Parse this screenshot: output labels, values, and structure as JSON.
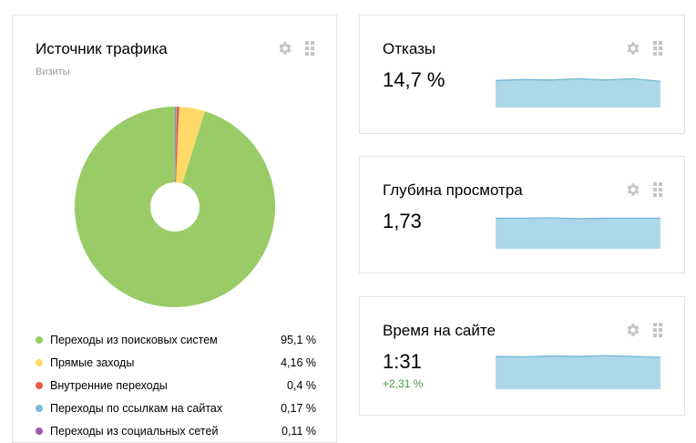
{
  "traffic": {
    "title": "Источник трафика",
    "subtitle": "Визиты"
  },
  "colors": {
    "search": "#99cc66",
    "direct": "#ffd966",
    "internal": "#ea5a4a",
    "links": "#7fb8e0",
    "social": "#9b59b6",
    "spark_fill": "#add8e9",
    "spark_line": "#6fb4d2",
    "positive": "#3c9f37"
  },
  "icons": {
    "settings": "gear-icon",
    "drag": "drag-handle-icon"
  },
  "chart_data": {
    "type": "pie",
    "donut": true,
    "series_label": "Визиты",
    "slices": [
      {
        "label": "Переходы из поисковых систем",
        "display": "95,1 %",
        "value": 95.1,
        "color": "#99cc66"
      },
      {
        "label": "Прямые заходы",
        "display": "4,16 %",
        "value": 4.16,
        "color": "#ffd966"
      },
      {
        "label": "Внутренние переходы",
        "display": "0,4 %",
        "value": 0.4,
        "color": "#ea5a4a"
      },
      {
        "label": "Переходы по ссылкам на сайтах",
        "display": "0,17 %",
        "value": 0.17,
        "color": "#7fb8e0"
      },
      {
        "label": "Переходы из социальных сетей",
        "display": "0,11 %",
        "value": 0.11,
        "color": "#9b59b6"
      }
    ]
  },
  "metrics": {
    "bounce": {
      "title": "Отказы",
      "value": "14,7 %",
      "trend": [
        0.62,
        0.64,
        0.63,
        0.66,
        0.63,
        0.66,
        0.6
      ]
    },
    "depth": {
      "title": "Глубина просмотра",
      "value": "1,73",
      "trend": [
        0.7,
        0.7,
        0.71,
        0.69,
        0.7,
        0.7,
        0.7
      ]
    },
    "time": {
      "title": "Время на сайте",
      "value": "1:31",
      "change": "+2,31 %",
      "trend": [
        0.75,
        0.74,
        0.76,
        0.75,
        0.77,
        0.75,
        0.73
      ]
    }
  }
}
